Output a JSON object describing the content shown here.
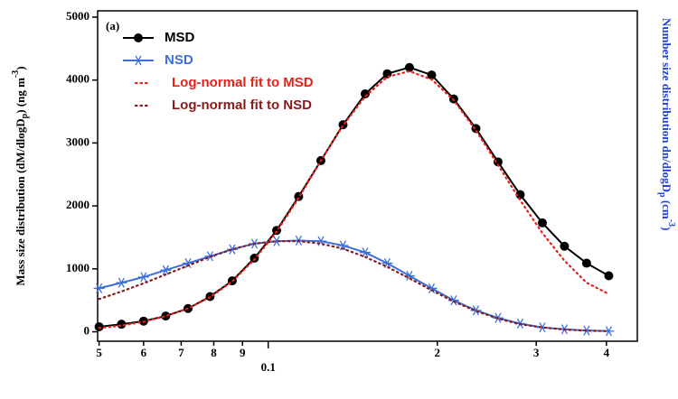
{
  "chart_data": {
    "type": "line",
    "annotation": "(a)",
    "x_label": "0.1",
    "y_label": {
      "pre": "Mass size distribution (dM/dlogD",
      "sub": "p",
      "mid": ") (ng m",
      "sup": "-3",
      "post": ")"
    },
    "y2_label": {
      "pre": "Number size distribution dn/dlogD",
      "sub": "p",
      "mid": " (cm",
      "sup": "-3",
      "post": ")"
    },
    "x": [
      0.05,
      0.0548,
      0.06,
      0.0657,
      0.072,
      0.0788,
      0.0863,
      0.0945,
      0.1035,
      0.1133,
      0.1241,
      0.1359,
      0.1488,
      0.1629,
      0.1784,
      0.1954,
      0.2139,
      0.2343,
      0.2565,
      0.2809,
      0.3076,
      0.3368,
      0.3688,
      0.4039
    ],
    "x_log": true,
    "xlim": [
      0.0497,
      0.454
    ],
    "xticks": [
      {
        "value": 0.05,
        "label": "5"
      },
      {
        "value": 0.06,
        "label": "6"
      },
      {
        "value": 0.07,
        "label": "7"
      },
      {
        "value": 0.08,
        "label": "8"
      },
      {
        "value": 0.09,
        "label": "9"
      },
      0.1,
      {
        "value": 0.2,
        "label": "2"
      },
      {
        "value": 0.3,
        "label": "3"
      },
      {
        "value": 0.4,
        "label": "4"
      }
    ],
    "ylim": [
      -150,
      5100
    ],
    "yticks": [
      0,
      1000,
      2000,
      3000,
      4000,
      5000
    ],
    "y2lim": [
      -150,
      5100
    ],
    "series": [
      {
        "name": "MSD",
        "color": "#000000",
        "marker": "dot",
        "style": "solid",
        "values": [
          80,
          120,
          170,
          250,
          370,
          560,
          810,
          1170,
          1610,
          2150,
          2720,
          3290,
          3780,
          4100,
          4200,
          4080,
          3700,
          3230,
          2700,
          2180,
          1730,
          1360,
          1090,
          890
        ]
      },
      {
        "name": "NSD",
        "color": "#3b6fe0",
        "marker": "star",
        "style": "solid",
        "axis": "y2",
        "values": [
          690,
          780,
          870,
          980,
          1090,
          1200,
          1310,
          1400,
          1440,
          1450,
          1440,
          1370,
          1260,
          1090,
          890,
          690,
          500,
          340,
          220,
          130,
          70,
          40,
          20,
          10
        ]
      },
      {
        "name": "Log-normal fit to MSD",
        "color": "#e8201a",
        "marker": "none",
        "style": "dotted",
        "values": [
          60,
          100,
          160,
          250,
          370,
          550,
          800,
          1150,
          1590,
          2130,
          2720,
          3280,
          3740,
          4050,
          4140,
          4010,
          3680,
          3200,
          2650,
          2090,
          1570,
          1130,
          780,
          600
        ]
      },
      {
        "name": "Log-normal fit to NSD",
        "color": "#8b1a1a",
        "marker": "none",
        "style": "dotted",
        "axis": "y2",
        "values": [
          520,
          640,
          770,
          910,
          1050,
          1190,
          1310,
          1400,
          1440,
          1440,
          1400,
          1320,
          1190,
          1030,
          850,
          660,
          480,
          330,
          210,
          120,
          70,
          35,
          18,
          10
        ]
      }
    ]
  }
}
